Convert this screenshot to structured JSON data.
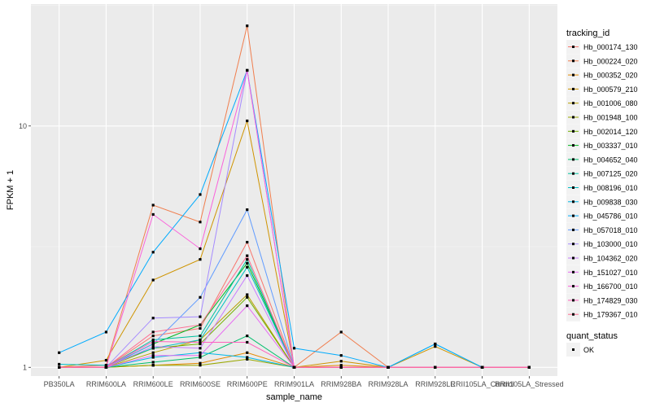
{
  "chart_data": {
    "type": "line",
    "xlabel": "sample_name",
    "ylabel": "FPKM + 1",
    "y_scale": "log10",
    "ylim": [
      0.92,
      32
    ],
    "y_ticks": [
      1,
      10
    ],
    "grid": true,
    "legend_position": "right",
    "categories": [
      "PB350LA",
      "RRIM600LA",
      "RRIM600LE",
      "RRIM600SE",
      "RRIM600PE",
      "RRIM901LA",
      "RRIM928BA",
      "RRIM928LA",
      "RRIM928LE",
      "RRII105LA_Control",
      "RRII105LA_Stressed"
    ],
    "legend_title": "tracking_id",
    "series": [
      {
        "name": "Hb_000174_130",
        "color": "#F8766D",
        "values": [
          1.0,
          1.0,
          1.35,
          1.45,
          3.3,
          1.0,
          1.0,
          1.0,
          1.0,
          1.0,
          1.0
        ]
      },
      {
        "name": "Hb_000224_020",
        "color": "#F07E4E",
        "values": [
          1.0,
          1.02,
          4.7,
          4.0,
          26.0,
          1.0,
          1.4,
          1.0,
          1.0,
          1.0,
          1.0
        ]
      },
      {
        "name": "Hb_000352_020",
        "color": "#E38900",
        "values": [
          1.0,
          1.0,
          1.02,
          1.04,
          1.15,
          1.0,
          1.02,
          1.0,
          1.0,
          1.0,
          1.0
        ]
      },
      {
        "name": "Hb_000579_210",
        "color": "#CF9400",
        "values": [
          1.0,
          1.07,
          2.3,
          2.8,
          10.5,
          1.0,
          1.06,
          1.0,
          1.22,
          1.0,
          1.0
        ]
      },
      {
        "name": "Hb_001006_080",
        "color": "#B79F00",
        "values": [
          1.0,
          1.0,
          1.15,
          1.3,
          2.0,
          1.0,
          1.0,
          1.0,
          1.0,
          1.0,
          1.0
        ]
      },
      {
        "name": "Hb_001948_100",
        "color": "#9AA800",
        "values": [
          1.0,
          1.0,
          1.02,
          1.02,
          1.08,
          1.0,
          1.0,
          1.0,
          1.0,
          1.0,
          1.0
        ]
      },
      {
        "name": "Hb_002014_120",
        "color": "#72B000",
        "values": [
          1.0,
          1.0,
          1.2,
          1.25,
          1.95,
          1.0,
          1.0,
          1.0,
          1.0,
          1.0,
          1.0
        ]
      },
      {
        "name": "Hb_003337_010",
        "color": "#00B81F",
        "values": [
          1.0,
          1.0,
          1.25,
          1.5,
          2.7,
          1.0,
          1.0,
          1.0,
          1.0,
          1.0,
          1.0
        ]
      },
      {
        "name": "Hb_004652_040",
        "color": "#00BE6C",
        "values": [
          1.0,
          1.0,
          1.05,
          1.1,
          1.35,
          1.0,
          1.0,
          1.0,
          1.0,
          1.0,
          1.0
        ]
      },
      {
        "name": "Hb_007125_020",
        "color": "#00C19F",
        "values": [
          1.0,
          1.0,
          1.3,
          1.35,
          2.8,
          1.0,
          1.0,
          1.0,
          1.0,
          1.0,
          1.0
        ]
      },
      {
        "name": "Hb_008196_010",
        "color": "#00BFC4",
        "values": [
          1.03,
          1.02,
          1.2,
          1.3,
          2.6,
          1.0,
          1.0,
          1.0,
          1.0,
          1.0,
          1.0
        ]
      },
      {
        "name": "Hb_009838_030",
        "color": "#00B8E5",
        "values": [
          1.0,
          1.0,
          1.1,
          1.15,
          1.1,
          1.0,
          1.0,
          1.0,
          1.25,
          1.0,
          1.0
        ]
      },
      {
        "name": "Hb_045786_010",
        "color": "#00ABFD",
        "values": [
          1.15,
          1.4,
          3.0,
          5.2,
          17.0,
          1.2,
          1.12,
          1.0,
          1.25,
          1.0,
          1.0
        ]
      },
      {
        "name": "Hb_057018_010",
        "color": "#619CFF",
        "values": [
          1.0,
          1.0,
          1.25,
          1.95,
          4.5,
          1.0,
          1.0,
          1.0,
          1.0,
          1.0,
          1.0
        ]
      },
      {
        "name": "Hb_103000_010",
        "color": "#A58AFF",
        "values": [
          1.0,
          1.0,
          1.6,
          1.62,
          17.0,
          1.0,
          1.0,
          1.0,
          1.0,
          1.0,
          1.0
        ]
      },
      {
        "name": "Hb_104362_020",
        "color": "#C77CFF",
        "values": [
          1.0,
          1.0,
          1.22,
          1.2,
          2.4,
          1.0,
          1.0,
          1.0,
          1.0,
          1.0,
          1.0
        ]
      },
      {
        "name": "Hb_151027_010",
        "color": "#E76BF3",
        "values": [
          1.0,
          1.0,
          1.12,
          1.12,
          1.8,
          1.0,
          1.0,
          1.0,
          1.0,
          1.0,
          1.0
        ]
      },
      {
        "name": "Hb_166700_010",
        "color": "#FA62DB",
        "values": [
          1.0,
          1.0,
          4.3,
          3.1,
          17.0,
          1.0,
          1.0,
          1.0,
          1.0,
          1.0,
          1.0
        ]
      },
      {
        "name": "Hb_174829_030",
        "color": "#FF62BC",
        "values": [
          1.0,
          1.0,
          1.28,
          1.27,
          1.27,
          1.0,
          1.0,
          1.0,
          1.0,
          1.0,
          1.0
        ]
      },
      {
        "name": "Hb_179367_010",
        "color": "#FF6C91",
        "values": [
          1.0,
          1.0,
          1.4,
          1.5,
          2.9,
          1.0,
          1.0,
          1.0,
          1.0,
          1.0,
          1.0
        ]
      }
    ],
    "shape_legend": {
      "title": "quant_status",
      "items": [
        "OK"
      ]
    }
  }
}
